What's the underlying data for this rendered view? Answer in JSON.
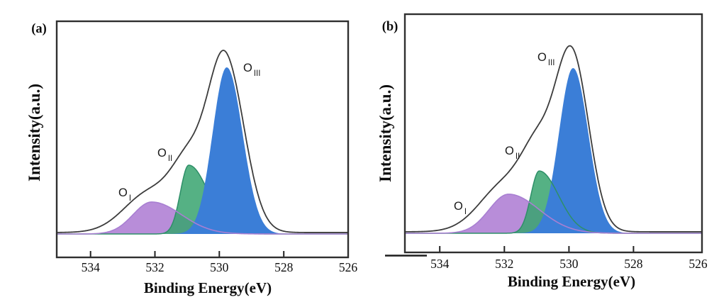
{
  "figure": {
    "background": "#ffffff",
    "kind": "XPS O 1s spectra, two deconvoluted panels"
  },
  "panels": [
    {
      "letter": "(a)",
      "y_axis_title": "Intensity(a.u.)",
      "x_axis_title": "Binding Energy(eV)",
      "peak_labels": [
        {
          "main": "O",
          "sub": "I"
        },
        {
          "main": "O",
          "sub": "II"
        },
        {
          "main": "O",
          "sub": "III"
        }
      ]
    },
    {
      "letter": "(b)",
      "y_axis_title": "Intensity(a.u.)",
      "x_axis_title": "Binding Energy(eV)",
      "peak_labels": [
        {
          "main": "O",
          "sub": "I"
        },
        {
          "main": "O",
          "sub": "II"
        },
        {
          "main": "O",
          "sub": "III"
        }
      ]
    }
  ],
  "chart_data": {
    "type": "area",
    "description": "Two-panel deconvoluted XPS O 1s core-level spectra. Dark line = measured envelope; filled split-Gaussian components O_I (purple), O_II (green), O_III (blue). Binding-energy axis decreases left to right.",
    "x_axis": {
      "label": "Binding Energy(eV)",
      "unit": "eV",
      "direction": "decreasing left to right",
      "tick_labels": [
        "534",
        "532",
        "530",
        "528",
        "526"
      ],
      "ticks_with_marks": [
        534,
        532,
        530,
        528
      ]
    },
    "y_axis": {
      "label": "Intensity(a.u.)",
      "scale": "arbitrary units, no ticks"
    },
    "colors": {
      "envelope": "#3c3c3c",
      "o1_fill": "#b88dd9",
      "o1_stroke": "#a87fd2",
      "o2_fill": "#37a36e",
      "o2_fill_opacity": 0.85,
      "o2_stroke": "#2e8f68",
      "o3_fill": "#3b7ed7",
      "frame": "#2f2f2f"
    },
    "panels": [
      {
        "label": "(a)",
        "x_min": 526.0,
        "x_max": 535.05,
        "baseline_rel": 0.008,
        "peaks": [
          {
            "name": "O_I",
            "center_eV": 532.1,
            "height_rel": 0.176,
            "sigma_left_eV": 0.58,
            "sigma_right_eV": 0.92
          },
          {
            "name": "O_II",
            "center_eV": 530.95,
            "height_rel": 0.379,
            "sigma_left_eV": 0.26,
            "sigma_right_eV": 0.61
          },
          {
            "name": "O_III",
            "center_eV": 529.77,
            "height_rel": 0.918,
            "sigma_left_eV": 0.44,
            "sigma_right_eV": 0.49
          }
        ],
        "envelope_components": [
          {
            "center_eV": 532.15,
            "height_rel": 0.22,
            "sigma_left_eV": 0.8,
            "sigma_right_eV": 0.8
          },
          {
            "center_eV": 530.9,
            "height_rel": 0.35,
            "sigma_left_eV": 0.55,
            "sigma_right_eV": 0.62
          },
          {
            "center_eV": 529.8,
            "height_rel": 0.92,
            "sigma_left_eV": 0.52,
            "sigma_right_eV": 0.58
          }
        ]
      },
      {
        "label": "(b)",
        "x_min": 525.88,
        "x_max": 535.08,
        "baseline_rel": 0.008,
        "peaks": [
          {
            "name": "O_I",
            "center_eV": 531.87,
            "height_rel": 0.212,
            "sigma_left_eV": 0.6,
            "sigma_right_eV": 0.95
          },
          {
            "name": "O_II",
            "center_eV": 530.92,
            "height_rel": 0.338,
            "sigma_left_eV": 0.26,
            "sigma_right_eV": 0.6
          },
          {
            "name": "O_III",
            "center_eV": 529.87,
            "height_rel": 0.896,
            "sigma_left_eV": 0.44,
            "sigma_right_eV": 0.47
          }
        ],
        "envelope_components": [
          {
            "center_eV": 531.95,
            "height_rel": 0.26,
            "sigma_left_eV": 0.8,
            "sigma_right_eV": 0.8
          },
          {
            "center_eV": 530.9,
            "height_rel": 0.37,
            "sigma_left_eV": 0.52,
            "sigma_right_eV": 0.6
          },
          {
            "center_eV": 529.88,
            "height_rel": 0.9,
            "sigma_left_eV": 0.5,
            "sigma_right_eV": 0.51
          }
        ]
      }
    ]
  }
}
